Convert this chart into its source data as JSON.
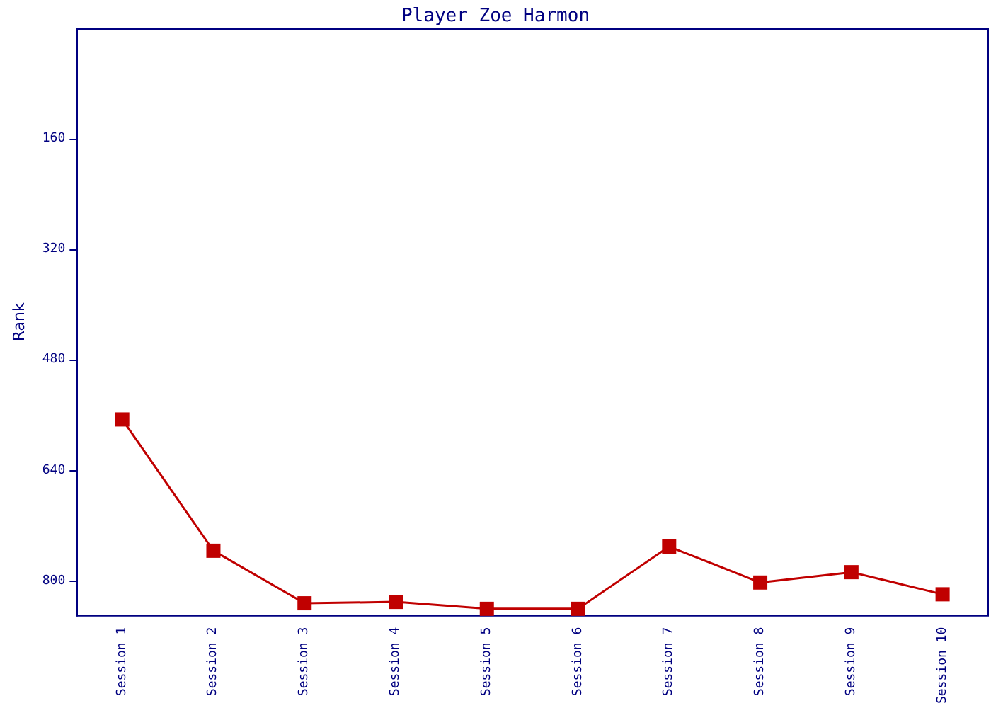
{
  "chart_data": {
    "type": "line",
    "title": "Player Zoe Harmon",
    "ylabel": "Rank",
    "categories": [
      "Session 1",
      "Session 2",
      "Session 3",
      "Session 4",
      "Session 5",
      "Session 6",
      "Session 7",
      "Session 8",
      "Session 9",
      "Session 10"
    ],
    "series": [
      {
        "color": "#c00000",
        "values": [
          566,
          756,
          832,
          830,
          840,
          840,
          750,
          802,
          787,
          819
        ]
      }
    ],
    "ylim": [
      850,
      0
    ],
    "yticks": [
      160,
      320,
      480,
      640,
      800
    ],
    "marker": "square",
    "line_style": "solid"
  }
}
